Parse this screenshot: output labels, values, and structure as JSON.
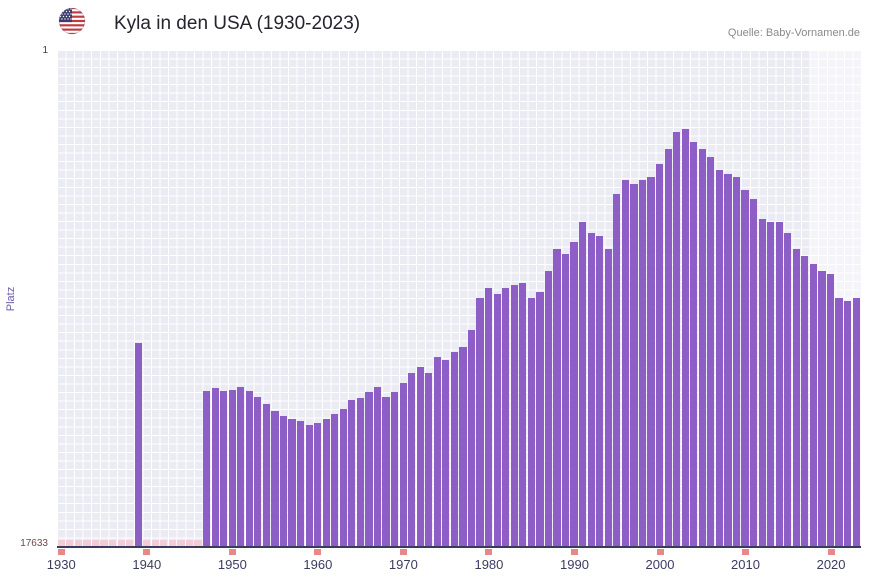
{
  "header": {
    "title": "Kyla in den USA (1930-2023)",
    "source": "Quelle: Baby-Vornamen.de"
  },
  "colors": {
    "bar": "#8d5ec6",
    "plot_background": "#ebebf3",
    "grid_line": "#ffffff",
    "no_rank_stub": "#f3cdd6",
    "decade_tick": "#e88888",
    "axis_line": "#3a3a5a",
    "x_label": "#3c3c60",
    "y_axis_label": "#6c5ba7",
    "recent_band": "rgba(255,255,255,0.5)",
    "title_text": "#24242e",
    "source_text": "#8a8a8a"
  },
  "chart_data": {
    "type": "bar",
    "title": "Kyla in den USA (1930-2023)",
    "xlabel": "",
    "ylabel": "Platz",
    "y_axis": {
      "best": 1,
      "worst": 17633,
      "inverted": true,
      "scale": "linear"
    },
    "x_start_year": 1930,
    "x_end_year": 2023,
    "x_tick_labels": [
      "1930",
      "1940",
      "1950",
      "1960",
      "1970",
      "1980",
      "1990",
      "2000",
      "2010",
      "2020"
    ],
    "recent_band_start_year": 2018,
    "ranks_by_year_from_1930": [
      null,
      null,
      null,
      null,
      null,
      null,
      null,
      null,
      null,
      10400,
      null,
      null,
      null,
      null,
      null,
      null,
      null,
      12100,
      11990,
      12100,
      12050,
      11950,
      12080,
      12300,
      12550,
      12800,
      13000,
      13100,
      13150,
      13300,
      13250,
      13100,
      12900,
      12750,
      12400,
      12350,
      12150,
      11950,
      12300,
      12150,
      11800,
      11450,
      11250,
      11450,
      10900,
      11000,
      10700,
      10550,
      9950,
      8800,
      8450,
      8650,
      8450,
      8350,
      8250,
      8800,
      8600,
      7850,
      7050,
      7250,
      6800,
      6100,
      6500,
      6600,
      7050,
      5100,
      4600,
      4750,
      4600,
      4500,
      4050,
      3500,
      2900,
      2800,
      3250,
      3500,
      3800,
      4250,
      4400,
      4500,
      4950,
      5300,
      6000,
      6100,
      6100,
      6500,
      7050,
      7300,
      7600,
      7850,
      7950,
      8800,
      8900,
      8800
    ]
  }
}
